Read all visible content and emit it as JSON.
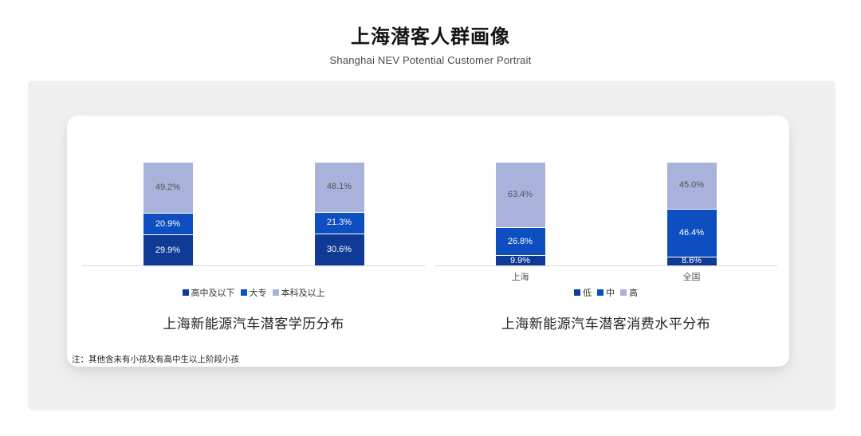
{
  "page": {
    "title": "上海潜客人群画像",
    "subtitle": "Shanghai NEV Potential Customer Portrait",
    "note": "注：其他含未有小孩及有高中生以上阶段小孩"
  },
  "colors": {
    "dark_blue": "#0F3A96",
    "medium_blue": "#0D4EC0",
    "light_blue": "#A9B2DA",
    "axis_line": "#D8D8D8",
    "outer_card_bg": "#F0F0F1",
    "card_bg": "#FFFFFF"
  },
  "chart_data": [
    {
      "type": "bar",
      "stacked": true,
      "title": "上海新能源汽车潜客学历分布",
      "categories": [
        "",
        ""
      ],
      "series": [
        {
          "name": "高中及以下",
          "color": "#0F3A96",
          "label_color": "#FFFFFF",
          "values": [
            29.9,
            30.6
          ]
        },
        {
          "name": "大专",
          "color": "#0D4EC0",
          "label_color": "#FFFFFF",
          "values": [
            20.9,
            21.3
          ]
        },
        {
          "name": "本科及以上",
          "color": "#A9B2DA",
          "label_color": "#545454",
          "values": [
            49.2,
            48.1
          ]
        }
      ],
      "value_suffix": "%",
      "ylim": [
        0,
        100
      ],
      "legend_position": "bottom",
      "grid": false
    },
    {
      "type": "bar",
      "stacked": true,
      "title": "上海新能源汽车潜客消费水平分布",
      "categories": [
        "上海",
        "全国"
      ],
      "series": [
        {
          "name": "低",
          "color": "#0F3A96",
          "label_color": "#FFFFFF",
          "values": [
            9.9,
            8.6
          ]
        },
        {
          "name": "中",
          "color": "#0D4EC0",
          "label_color": "#FFFFFF",
          "values": [
            26.8,
            46.4
          ]
        },
        {
          "name": "高",
          "color": "#A9B2DA",
          "label_color": "#545454",
          "values": [
            63.4,
            45.0
          ]
        }
      ],
      "value_suffix": "%",
      "ylim": [
        0,
        100
      ],
      "legend_position": "bottom",
      "grid": false
    }
  ]
}
